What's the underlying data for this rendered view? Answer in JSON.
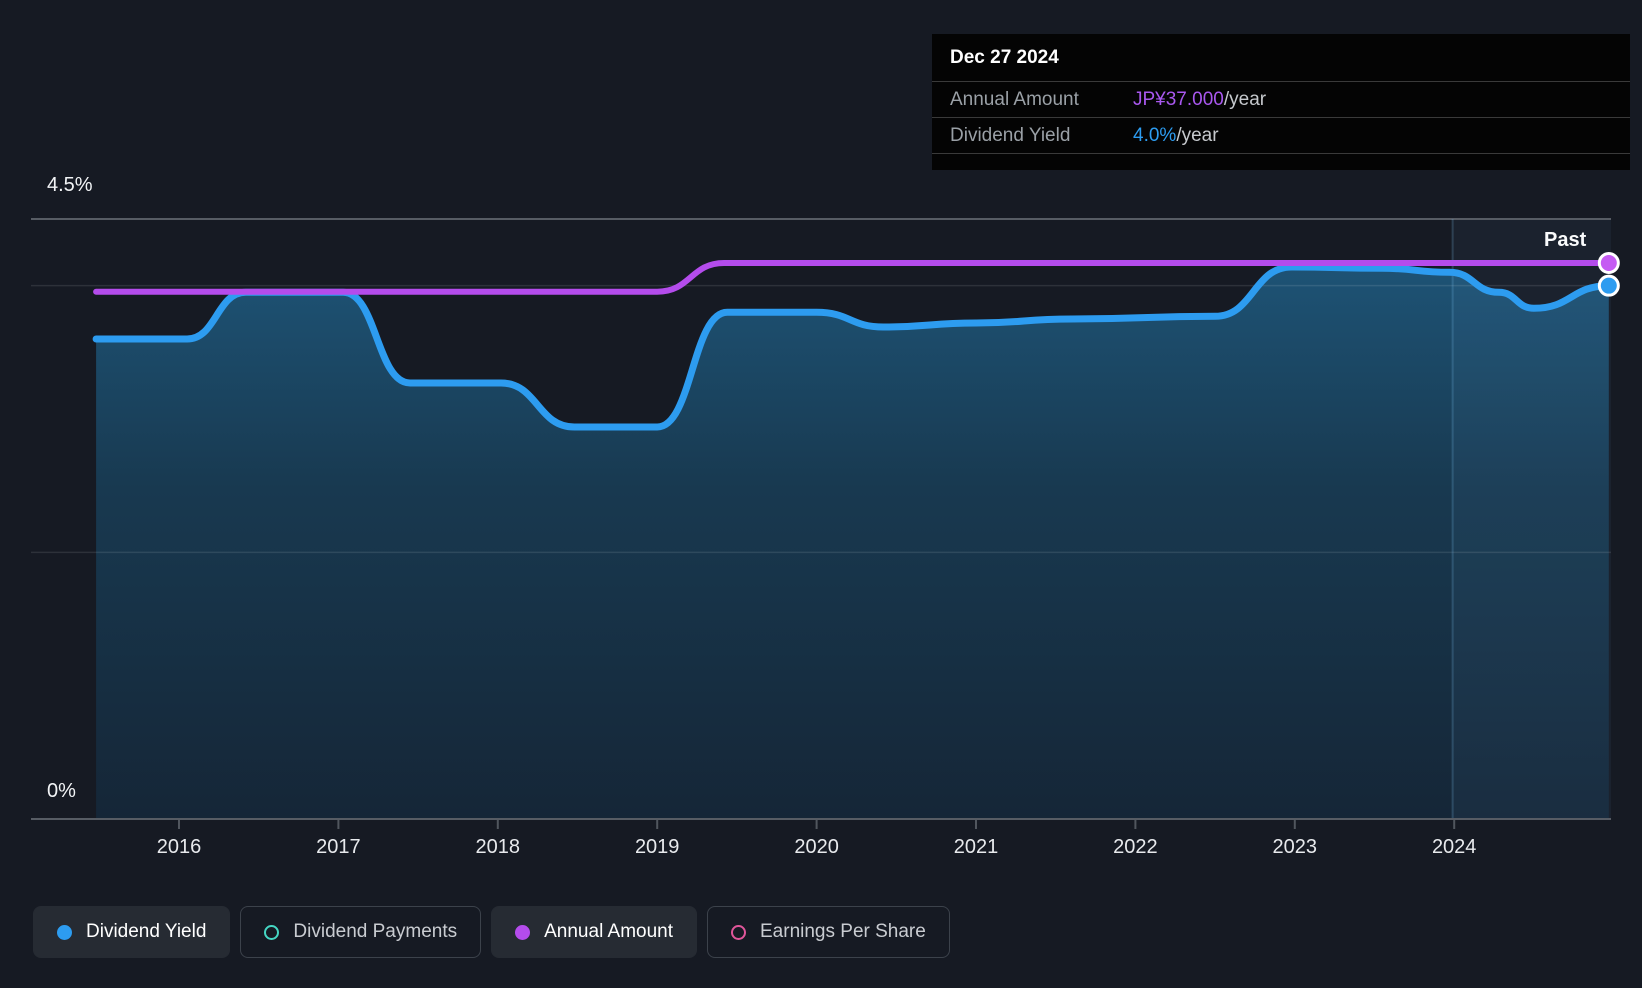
{
  "tooltip": {
    "date": "Dec 27 2024",
    "rows": [
      {
        "label": "Annual Amount",
        "value": "JP¥37.000",
        "suffix": "/year",
        "value_color": "#a958ef"
      },
      {
        "label": "Dividend Yield",
        "value": "4.0%",
        "suffix": "/year",
        "value_color": "#2d9cf0"
      }
    ]
  },
  "legend": {
    "items": [
      {
        "name": "dividend-yield",
        "label": "Dividend Yield",
        "swatch": "filled",
        "color": "#2d9cf0",
        "active": true
      },
      {
        "name": "dividend-payments",
        "label": "Dividend Payments",
        "swatch": "ring",
        "color": "#45d6c3",
        "active": false
      },
      {
        "name": "annual-amount",
        "label": "Annual Amount",
        "swatch": "filled",
        "color": "#b44cec",
        "active": true
      },
      {
        "name": "earnings-per-share",
        "label": "Earnings Per Share",
        "swatch": "ring",
        "color": "#e0569a",
        "active": false
      }
    ]
  },
  "chart_data": {
    "type": "area",
    "past_label": "Past",
    "past_start_year": 2023.99,
    "y_axis": {
      "top_label": "4.5%",
      "bottom_label": "0%",
      "min_pct": 0,
      "max_pct": 4.5,
      "gridlines": [
        {
          "pct": 4.5,
          "strong": true
        },
        {
          "pct": 4.0,
          "strong": false
        },
        {
          "pct": 2.0,
          "strong": false
        },
        {
          "pct": 0.0,
          "strong": true
        }
      ]
    },
    "x_axis": {
      "min_year": 2015.48,
      "max_year": 2024.97,
      "ticks": [
        2016,
        2017,
        2018,
        2019,
        2020,
        2021,
        2022,
        2023,
        2024
      ]
    },
    "series": [
      {
        "name": "Dividend Yield",
        "unit": "%",
        "color": "#2d9cf0",
        "marker_color": "#2d9cf0",
        "area": true,
        "current": "4.0%/year",
        "points": [
          [
            2015.48,
            3.6
          ],
          [
            2016.05,
            3.6
          ],
          [
            2016.42,
            3.95
          ],
          [
            2017.03,
            3.95
          ],
          [
            2017.45,
            3.27
          ],
          [
            2018.02,
            3.27
          ],
          [
            2018.48,
            2.94
          ],
          [
            2019.0,
            2.94
          ],
          [
            2019.44,
            3.8
          ],
          [
            2020.0,
            3.8
          ],
          [
            2020.42,
            3.69
          ],
          [
            2021.0,
            3.72
          ],
          [
            2021.6,
            3.75
          ],
          [
            2022.5,
            3.77
          ],
          [
            2022.98,
            4.14
          ],
          [
            2023.55,
            4.13
          ],
          [
            2023.97,
            4.1
          ],
          [
            2024.28,
            3.95
          ],
          [
            2024.5,
            3.83
          ],
          [
            2024.97,
            4.0
          ]
        ]
      },
      {
        "name": "Annual Amount",
        "unit": "JP¥/year",
        "color": "#b44cec",
        "marker_color": "#c55bf3",
        "area": false,
        "current": "JP¥37.000/year",
        "amounts_jpy": [
          [
            2015.48,
            35
          ],
          [
            2019.0,
            35
          ],
          [
            2019.42,
            37
          ],
          [
            2024.97,
            37
          ]
        ],
        "points_pct_equiv": [
          [
            2015.48,
            3.955
          ],
          [
            2019.0,
            3.955
          ],
          [
            2019.42,
            4.17
          ],
          [
            2024.97,
            4.17
          ]
        ]
      }
    ]
  },
  "colors": {
    "background": "#161a23",
    "tooltip_bg": "#040404",
    "grid_strong": "#575c64",
    "grid_faint": "rgba(255,255,255,0.10)",
    "tick": "#51565e",
    "tick_text": "#e8eaed",
    "past_divider": "rgba(125,190,235,0.22)",
    "past_overlay": "rgba(130,185,230,0.055)",
    "area_top": "#1e5578",
    "area_mid": "#183950",
    "area_bottom": "#152637"
  }
}
